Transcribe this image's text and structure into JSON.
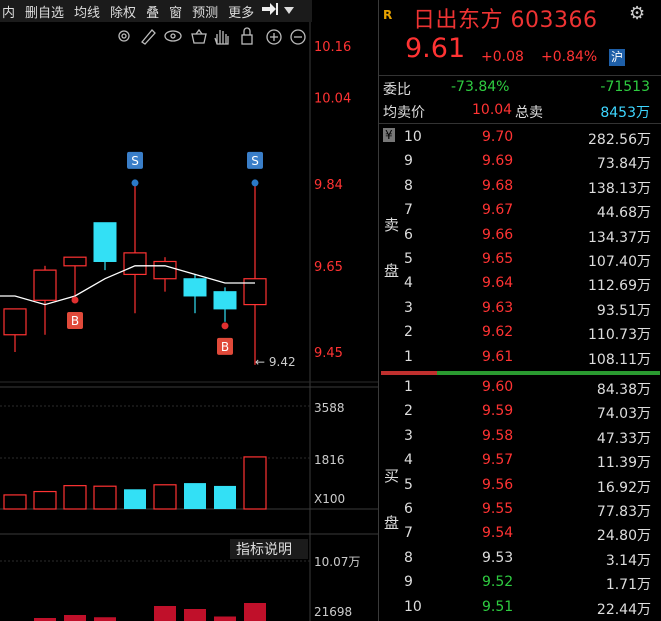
{
  "toolbar": {
    "items": [
      "内",
      "删自选",
      "均线",
      "除权",
      "叠",
      "窗",
      "预测",
      "更多"
    ],
    "pin_icon": "pin-right-icon",
    "dropdown_icon": "dropdown-triangle-icon"
  },
  "chart_tools": [
    "settings-icon",
    "draw-pen-icon",
    "eye-icon",
    "basket-icon",
    "hand-icon",
    "lock-icon",
    "zoom-in-icon",
    "zoom-out-icon"
  ],
  "chart_data": [
    {
      "type": "candlestick",
      "axis_ticks": [
        "10.16",
        "10.04",
        "9.84",
        "9.65",
        "9.45"
      ],
      "ylim": [
        9.4,
        10.2
      ],
      "candles": [
        {
          "open": 9.55,
          "close": 9.49,
          "high": 9.55,
          "low": 9.45,
          "color": "red",
          "style": "hollow"
        },
        {
          "open": 9.57,
          "close": 9.64,
          "high": 9.65,
          "low": 9.49,
          "color": "red",
          "style": "hollow"
        },
        {
          "open": 9.65,
          "close": 9.67,
          "high": 9.67,
          "low": 9.58,
          "color": "red",
          "style": "hollow"
        },
        {
          "open": 9.75,
          "close": 9.66,
          "high": 9.75,
          "low": 9.64,
          "color": "cyan",
          "style": "filled"
        },
        {
          "open": 9.63,
          "close": 9.68,
          "high": 9.84,
          "low": 9.54,
          "color": "red",
          "style": "hollow"
        },
        {
          "open": 9.62,
          "close": 9.66,
          "high": 9.67,
          "low": 9.59,
          "color": "red",
          "style": "hollow"
        },
        {
          "open": 9.62,
          "close": 9.58,
          "high": 9.63,
          "low": 9.54,
          "color": "cyan",
          "style": "filled"
        },
        {
          "open": 9.59,
          "close": 9.55,
          "high": 9.6,
          "low": 9.52,
          "color": "cyan",
          "style": "filled"
        },
        {
          "open": 9.56,
          "close": 9.62,
          "high": 9.84,
          "low": 9.42,
          "color": "red",
          "style": "hollow"
        }
      ],
      "ma_values": [
        9.58,
        9.56,
        9.58,
        9.62,
        9.65,
        9.65,
        9.63,
        9.61,
        9.61
      ],
      "markers": [
        {
          "label": "B",
          "candle": 2,
          "type": "buy"
        },
        {
          "label": "S",
          "candle": 4,
          "type": "sell"
        },
        {
          "label": "B",
          "candle": 7,
          "type": "buy"
        },
        {
          "label": "S",
          "candle": 8,
          "type": "sell"
        }
      ],
      "low_annotation": "9.42"
    },
    {
      "type": "bar",
      "axis_ticks": [
        "3588",
        "1816",
        "X100"
      ],
      "ylim": [
        0,
        3588
      ],
      "values": [
        500,
        620,
        830,
        810,
        700,
        860,
        920,
        820,
        1850
      ],
      "colors": [
        "red",
        "red",
        "red",
        "red",
        "cyan",
        "red",
        "cyan",
        "cyan",
        "red"
      ]
    },
    {
      "type": "bar",
      "axis_ticks": [
        "10.07万",
        "21698"
      ],
      "values": [
        0,
        0.2,
        0.4,
        0.25,
        0,
        1,
        0.8,
        0.3,
        1.2
      ],
      "colors": [
        "red",
        "red",
        "red",
        "red",
        "red",
        "red",
        "red",
        "red",
        "red"
      ],
      "label": "指标说明"
    }
  ],
  "quote": {
    "logo": "R",
    "name": "日出东方 603366",
    "last": "9.61",
    "change": "+0.08",
    "change_pct": "+0.84%",
    "market": "沪",
    "weibi_label": "委比",
    "weibi_pct": "-73.84%",
    "weibi_diff": "-71513",
    "avg_label": "均卖价",
    "avg_value": "10.04",
    "total_label": "总卖",
    "total_value": "8453万",
    "sell_side": [
      "卖",
      "盘"
    ],
    "buy_side": [
      "买",
      "盘"
    ],
    "currency": "¥",
    "asks": [
      {
        "level": "10",
        "price": "9.70",
        "vol": "282.56万",
        "dir": "red"
      },
      {
        "level": "9",
        "price": "9.69",
        "vol": "73.84万",
        "dir": "red"
      },
      {
        "level": "8",
        "price": "9.68",
        "vol": "138.13万",
        "dir": "red"
      },
      {
        "level": "7",
        "price": "9.67",
        "vol": "44.68万",
        "dir": "red"
      },
      {
        "level": "6",
        "price": "9.66",
        "vol": "134.37万",
        "dir": "red"
      },
      {
        "level": "5",
        "price": "9.65",
        "vol": "107.40万",
        "dir": "red"
      },
      {
        "level": "4",
        "price": "9.64",
        "vol": "112.69万",
        "dir": "red"
      },
      {
        "level": "3",
        "price": "9.63",
        "vol": "93.51万",
        "dir": "red"
      },
      {
        "level": "2",
        "price": "9.62",
        "vol": "110.73万",
        "dir": "red"
      },
      {
        "level": "1",
        "price": "9.61",
        "vol": "108.11万",
        "dir": "red"
      }
    ],
    "bids": [
      {
        "level": "1",
        "price": "9.60",
        "vol": "84.38万",
        "dir": "red"
      },
      {
        "level": "2",
        "price": "9.59",
        "vol": "74.03万",
        "dir": "red"
      },
      {
        "level": "3",
        "price": "9.58",
        "vol": "47.33万",
        "dir": "red"
      },
      {
        "level": "4",
        "price": "9.57",
        "vol": "11.39万",
        "dir": "red"
      },
      {
        "level": "5",
        "price": "9.56",
        "vol": "16.92万",
        "dir": "red"
      },
      {
        "level": "6",
        "price": "9.55",
        "vol": "77.83万",
        "dir": "red"
      },
      {
        "level": "7",
        "price": "9.54",
        "vol": "24.80万",
        "dir": "red"
      },
      {
        "level": "8",
        "price": "9.53",
        "vol": "3.14万",
        "dir": "white"
      },
      {
        "level": "9",
        "price": "9.52",
        "vol": "1.71万",
        "dir": "green"
      },
      {
        "level": "10",
        "price": "9.51",
        "vol": "22.44万",
        "dir": "green"
      }
    ],
    "ratio_bar": {
      "red_fraction": 0.2
    },
    "colors": {
      "up": "#ff3333",
      "down": "#2ecc40",
      "cyan": "#3ed6ff",
      "name": "#e33333"
    }
  }
}
